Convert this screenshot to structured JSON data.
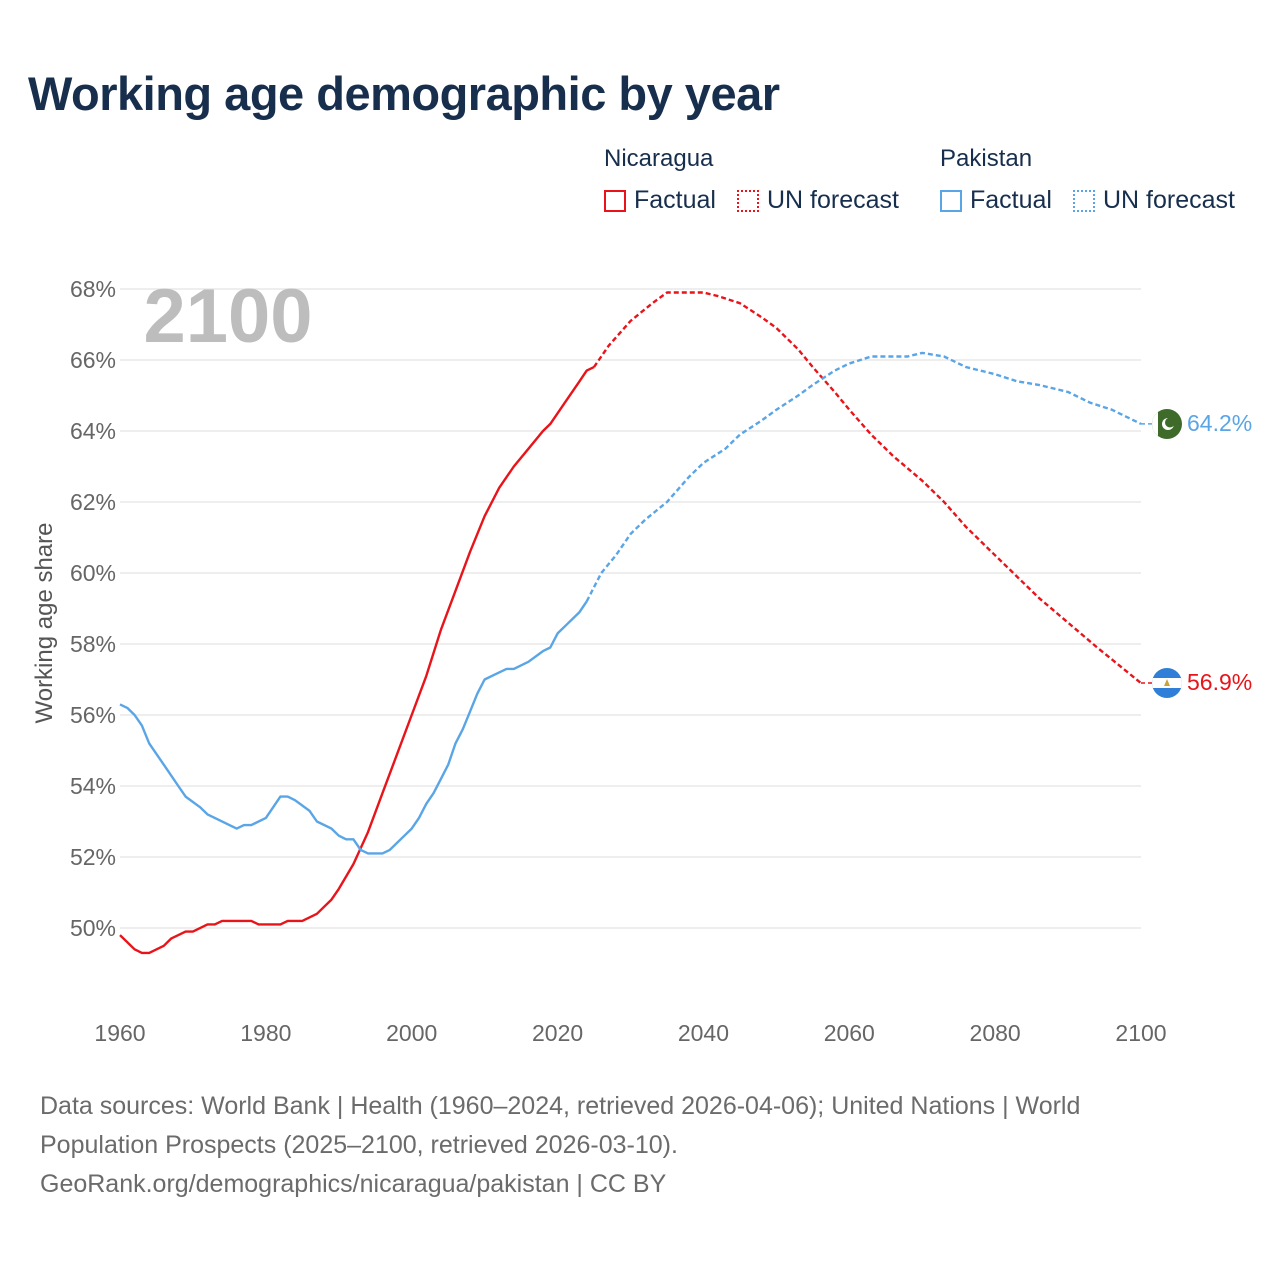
{
  "title": "Working age demographic by year",
  "legend": {
    "groups": [
      {
        "country": "Nicaragua",
        "factual_label": "Factual",
        "forecast_label": "UN forecast",
        "color": "#e8141a"
      },
      {
        "country": "Pakistan",
        "factual_label": "Factual",
        "forecast_label": "UN forecast",
        "color": "#5aa5e6"
      }
    ]
  },
  "chart_data": {
    "type": "line",
    "title": "Working age demographic by year",
    "xlabel": "",
    "ylabel": "Working age share",
    "xlim": [
      1960,
      2100
    ],
    "ylim": [
      48,
      68.5
    ],
    "x_ticks": [
      1960,
      1980,
      2000,
      2020,
      2040,
      2060,
      2080,
      2100
    ],
    "x_tick_labels": [
      "1960",
      "1980",
      "2000",
      "2020",
      "2040",
      "2060",
      "2080",
      "2100"
    ],
    "y_ticks": [
      50,
      52,
      54,
      56,
      58,
      60,
      62,
      64,
      66,
      68
    ],
    "y_tick_labels": [
      "50%",
      "52%",
      "54%",
      "56%",
      "58%",
      "60%",
      "62%",
      "64%",
      "66%",
      "68%"
    ],
    "year_watermark": "2100",
    "grid": true,
    "series": [
      {
        "name": "Nicaragua",
        "color": "#e8141a",
        "end_label": "56.9%",
        "factual": [
          [
            1960,
            49.8
          ],
          [
            1962,
            49.4
          ],
          [
            1963,
            49.3
          ],
          [
            1964,
            49.3
          ],
          [
            1966,
            49.5
          ],
          [
            1967,
            49.7
          ],
          [
            1969,
            49.9
          ],
          [
            1970,
            49.9
          ],
          [
            1972,
            50.1
          ],
          [
            1973,
            50.1
          ],
          [
            1974,
            50.2
          ],
          [
            1978,
            50.2
          ],
          [
            1979,
            50.1
          ],
          [
            1982,
            50.1
          ],
          [
            1983,
            50.2
          ],
          [
            1985,
            50.2
          ],
          [
            1987,
            50.4
          ],
          [
            1988,
            50.6
          ],
          [
            1989,
            50.8
          ],
          [
            1990,
            51.1
          ],
          [
            1992,
            51.8
          ],
          [
            1994,
            52.7
          ],
          [
            1996,
            53.8
          ],
          [
            1998,
            54.9
          ],
          [
            2000,
            56.0
          ],
          [
            2002,
            57.1
          ],
          [
            2004,
            58.4
          ],
          [
            2006,
            59.5
          ],
          [
            2008,
            60.6
          ],
          [
            2010,
            61.6
          ],
          [
            2012,
            62.4
          ],
          [
            2014,
            63.0
          ],
          [
            2016,
            63.5
          ],
          [
            2018,
            64.0
          ],
          [
            2019,
            64.2
          ],
          [
            2021,
            64.8
          ],
          [
            2023,
            65.4
          ],
          [
            2024,
            65.7
          ],
          [
            2025,
            65.8
          ]
        ],
        "forecast": [
          [
            2025,
            65.8
          ],
          [
            2027,
            66.4
          ],
          [
            2030,
            67.1
          ],
          [
            2033,
            67.6
          ],
          [
            2035,
            67.9
          ],
          [
            2040,
            67.9
          ],
          [
            2042,
            67.8
          ],
          [
            2045,
            67.6
          ],
          [
            2048,
            67.2
          ],
          [
            2050,
            66.9
          ],
          [
            2053,
            66.3
          ],
          [
            2055,
            65.8
          ],
          [
            2058,
            65.1
          ],
          [
            2060,
            64.6
          ],
          [
            2063,
            63.9
          ],
          [
            2066,
            63.3
          ],
          [
            2070,
            62.6
          ],
          [
            2073,
            62.0
          ],
          [
            2076,
            61.3
          ],
          [
            2080,
            60.5
          ],
          [
            2083,
            59.9
          ],
          [
            2086,
            59.3
          ],
          [
            2090,
            58.6
          ],
          [
            2094,
            57.9
          ],
          [
            2097,
            57.4
          ],
          [
            2100,
            56.9
          ]
        ]
      },
      {
        "name": "Pakistan",
        "color": "#5aa5e6",
        "end_label": "64.2%",
        "factual": [
          [
            1960,
            56.3
          ],
          [
            1961,
            56.2
          ],
          [
            1962,
            56.0
          ],
          [
            1963,
            55.7
          ],
          [
            1964,
            55.2
          ],
          [
            1966,
            54.6
          ],
          [
            1968,
            54.0
          ],
          [
            1969,
            53.7
          ],
          [
            1971,
            53.4
          ],
          [
            1972,
            53.2
          ],
          [
            1973,
            53.1
          ],
          [
            1975,
            52.9
          ],
          [
            1976,
            52.8
          ],
          [
            1977,
            52.9
          ],
          [
            1978,
            52.9
          ],
          [
            1980,
            53.1
          ],
          [
            1982,
            53.7
          ],
          [
            1983,
            53.7
          ],
          [
            1984,
            53.6
          ],
          [
            1986,
            53.3
          ],
          [
            1987,
            53.0
          ],
          [
            1989,
            52.8
          ],
          [
            1990,
            52.6
          ],
          [
            1991,
            52.5
          ],
          [
            1992,
            52.5
          ],
          [
            1993,
            52.2
          ],
          [
            1994,
            52.1
          ],
          [
            1996,
            52.1
          ],
          [
            1997,
            52.2
          ],
          [
            1999,
            52.6
          ],
          [
            2000,
            52.8
          ],
          [
            2001,
            53.1
          ],
          [
            2002,
            53.5
          ],
          [
            2003,
            53.8
          ],
          [
            2004,
            54.2
          ],
          [
            2005,
            54.6
          ],
          [
            2006,
            55.2
          ],
          [
            2007,
            55.6
          ],
          [
            2008,
            56.1
          ],
          [
            2009,
            56.6
          ],
          [
            2010,
            57.0
          ],
          [
            2011,
            57.1
          ],
          [
            2012,
            57.2
          ],
          [
            2013,
            57.3
          ],
          [
            2014,
            57.3
          ],
          [
            2016,
            57.5
          ],
          [
            2018,
            57.8
          ],
          [
            2019,
            57.9
          ],
          [
            2020,
            58.3
          ],
          [
            2021,
            58.5
          ],
          [
            2023,
            58.9
          ],
          [
            2024,
            59.2
          ]
        ],
        "forecast": [
          [
            2024,
            59.2
          ],
          [
            2026,
            60.0
          ],
          [
            2028,
            60.5
          ],
          [
            2030,
            61.1
          ],
          [
            2032,
            61.5
          ],
          [
            2035,
            62.0
          ],
          [
            2038,
            62.7
          ],
          [
            2040,
            63.1
          ],
          [
            2043,
            63.5
          ],
          [
            2045,
            63.9
          ],
          [
            2048,
            64.3
          ],
          [
            2050,
            64.6
          ],
          [
            2053,
            65.0
          ],
          [
            2055,
            65.3
          ],
          [
            2058,
            65.7
          ],
          [
            2060,
            65.9
          ],
          [
            2063,
            66.1
          ],
          [
            2065,
            66.1
          ],
          [
            2068,
            66.1
          ],
          [
            2070,
            66.2
          ],
          [
            2073,
            66.1
          ],
          [
            2076,
            65.8
          ],
          [
            2080,
            65.6
          ],
          [
            2083,
            65.4
          ],
          [
            2086,
            65.3
          ],
          [
            2090,
            65.1
          ],
          [
            2093,
            64.8
          ],
          [
            2096,
            64.6
          ],
          [
            2098,
            64.4
          ],
          [
            2100,
            64.2
          ]
        ]
      }
    ]
  },
  "footer": {
    "line1": "Data sources: World Bank | Health (1960–2024, retrieved 2026-04-06); United Nations | World",
    "line2": "Population Prospects (2025–2100, retrieved 2026-03-10).",
    "line3": "GeoRank.org/demographics/nicaragua/pakistan | CC BY"
  }
}
